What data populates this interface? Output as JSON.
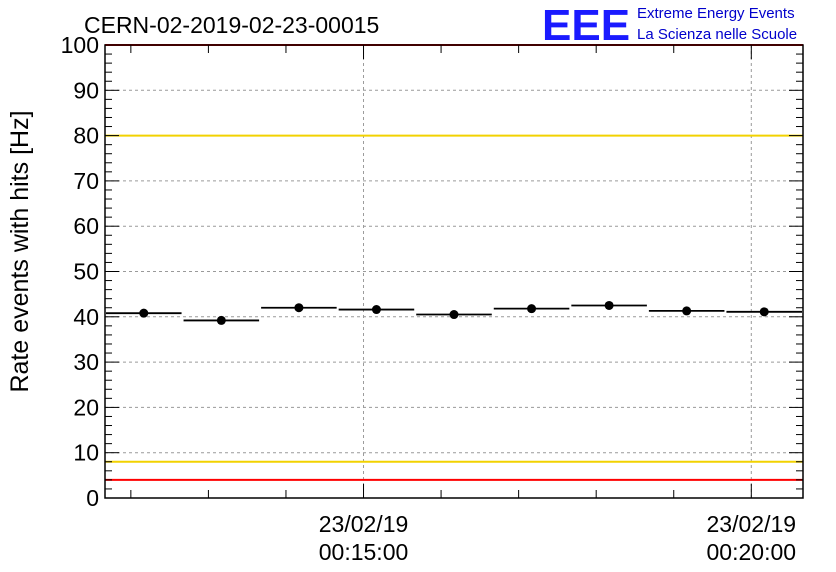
{
  "header": {
    "run_title": "CERN-02-2019-02-23-00015",
    "logo": "EEE",
    "logo_line1": "Extreme Energy Events",
    "logo_line2": "La Scienza nelle Scuole"
  },
  "colors": {
    "logo_blue": "#1a1aff",
    "logo_text_blue": "#0000cc",
    "limit_red": "#ff0000",
    "limit_yellow": "#f2d200",
    "marker": "#000000",
    "grid": "#9a9a9a"
  },
  "chart_data": {
    "type": "scatter",
    "title": "CERN-02-2019-02-23-00015",
    "ylabel": "Rate events with hits [Hz]",
    "xlabel": "",
    "ylim": [
      0,
      100
    ],
    "yticks": [
      0,
      10,
      20,
      30,
      40,
      50,
      60,
      70,
      80,
      90,
      100
    ],
    "xlim": [
      "23/02/19 00:11:40",
      "23/02/19 00:20:40"
    ],
    "xticks": [
      {
        "date": "23/02/19",
        "time": "00:15:00"
      },
      {
        "date": "23/02/19",
        "time": "00:20:00"
      }
    ],
    "grid": true,
    "series": [
      {
        "x_start": [
          "00:11:40",
          "00:12:40",
          "00:13:40",
          "00:14:40",
          "00:15:40",
          "00:16:40",
          "00:17:40",
          "00:18:40",
          "00:19:40"
        ],
        "x_end": [
          "00:12:40",
          "00:13:40",
          "00:14:40",
          "00:15:40",
          "00:16:40",
          "00:17:40",
          "00:18:40",
          "00:19:40",
          "00:20:40"
        ],
        "values": [
          40.8,
          39.2,
          42.0,
          41.6,
          40.5,
          41.8,
          42.5,
          41.3,
          41.1
        ]
      }
    ],
    "reference_lines": [
      {
        "y": 100,
        "color": "red"
      },
      {
        "y": 80,
        "color": "yellow"
      },
      {
        "y": 8,
        "color": "yellow"
      },
      {
        "y": 4,
        "color": "red"
      }
    ]
  }
}
